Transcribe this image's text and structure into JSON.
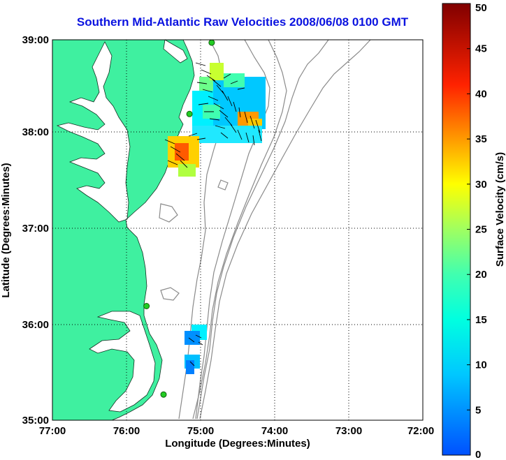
{
  "title": "Southern Mid-Atlantic Raw Velocities 2008/06/08 0100 GMT",
  "x_axis": {
    "label": "Longitude (Degrees:Minutes)",
    "ticks": [
      "77:00",
      "76:00",
      "75:00",
      "74:00",
      "73:00",
      "72:00"
    ]
  },
  "y_axis": {
    "label": "Latitude (Degrees:Minutes)",
    "ticks": [
      "39:00",
      "38:00",
      "37:00",
      "36:00",
      "35:00"
    ]
  },
  "colorbar": {
    "label": "Surface Velocity (cm/s)",
    "ticks": [
      "50",
      "45",
      "40",
      "35",
      "30",
      "25",
      "20",
      "15",
      "10",
      "5",
      "0"
    ],
    "range": [
      0,
      50
    ],
    "colormap": "jet"
  },
  "colors": {
    "land": "#3ff0a0",
    "title": "#0a12e0",
    "bathymetry": "#888888",
    "station": "#22cc22",
    "grid": "#000000"
  },
  "map": {
    "lon_range": [
      -77,
      -72
    ],
    "lat_range": [
      35,
      39
    ],
    "grid": "dotted",
    "stations": [
      {
        "lon": -74.85,
        "lat": 38.97
      },
      {
        "lon": -75.15,
        "lat": 38.22
      },
      {
        "lon": -75.73,
        "lat": 36.2
      },
      {
        "lon": -75.5,
        "lat": 35.27
      }
    ]
  }
}
